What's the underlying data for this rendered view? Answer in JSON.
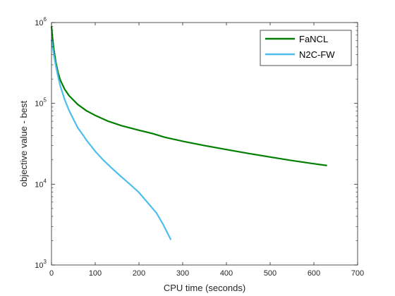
{
  "chart_data": {
    "type": "line",
    "xlabel": "CPU time (seconds)",
    "ylabel": "objective value - best",
    "xlim": [
      0,
      700
    ],
    "ylim": [
      1000,
      1000000
    ],
    "yscale": "log",
    "grid": false,
    "legend_position": "top-right",
    "x_ticks": [
      {
        "value": 0,
        "label": "0"
      },
      {
        "value": 100,
        "label": "100"
      },
      {
        "value": 200,
        "label": "200"
      },
      {
        "value": 300,
        "label": "300"
      },
      {
        "value": 400,
        "label": "400"
      },
      {
        "value": 500,
        "label": "500"
      },
      {
        "value": 600,
        "label": "600"
      },
      {
        "value": 700,
        "label": "700"
      }
    ],
    "y_ticks": [
      {
        "value": 1000,
        "base": "10",
        "exp": "3"
      },
      {
        "value": 10000,
        "base": "10",
        "exp": "4"
      },
      {
        "value": 100000,
        "base": "10",
        "exp": "5"
      },
      {
        "value": 1000000,
        "base": "10",
        "exp": "6"
      }
    ],
    "series": [
      {
        "name": "FaNCL",
        "color": "#007f00",
        "x": [
          0,
          2,
          5,
          10,
          15,
          20,
          30,
          40,
          60,
          80,
          100,
          130,
          160,
          200,
          230,
          260,
          300,
          350,
          400,
          450,
          500,
          550,
          600,
          630
        ],
        "y": [
          900000,
          680000,
          480000,
          320000,
          240000,
          195000,
          150000,
          125000,
          97000,
          81000,
          71000,
          60000,
          53000,
          46500,
          42500,
          38000,
          34000,
          30000,
          26800,
          24000,
          21700,
          19600,
          17900,
          17000
        ]
      },
      {
        "name": "N2C-FW",
        "color": "#4dbeee",
        "x": [
          0,
          3,
          6,
          10,
          15,
          20,
          30,
          40,
          50,
          60,
          70,
          80,
          100,
          120,
          140,
          160,
          180,
          200,
          220,
          240,
          255,
          265,
          273
        ],
        "y": [
          620000,
          480000,
          380000,
          290000,
          215000,
          165000,
          112000,
          82000,
          64000,
          50000,
          42000,
          35000,
          25500,
          19500,
          15400,
          12300,
          9900,
          7900,
          5900,
          4400,
          3200,
          2500,
          2050
        ]
      }
    ]
  }
}
